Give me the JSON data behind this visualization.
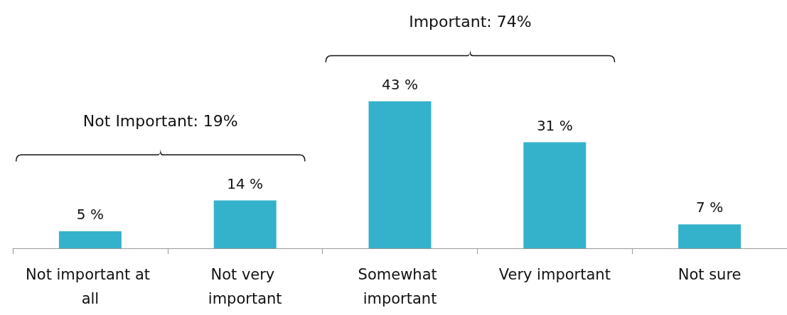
{
  "chart_data": {
    "type": "bar",
    "categories": [
      "Not important at all",
      "Not very important",
      "Somewhat important",
      "Very important",
      "Not sure"
    ],
    "values": [
      5,
      14,
      43,
      31,
      7
    ],
    "value_labels": [
      "5 %",
      "14 %",
      "43 %",
      "31 %",
      "7 %"
    ],
    "color": "#35b2cb",
    "annotations": [
      "Not Important: 19%",
      "Important: 74%"
    ]
  }
}
